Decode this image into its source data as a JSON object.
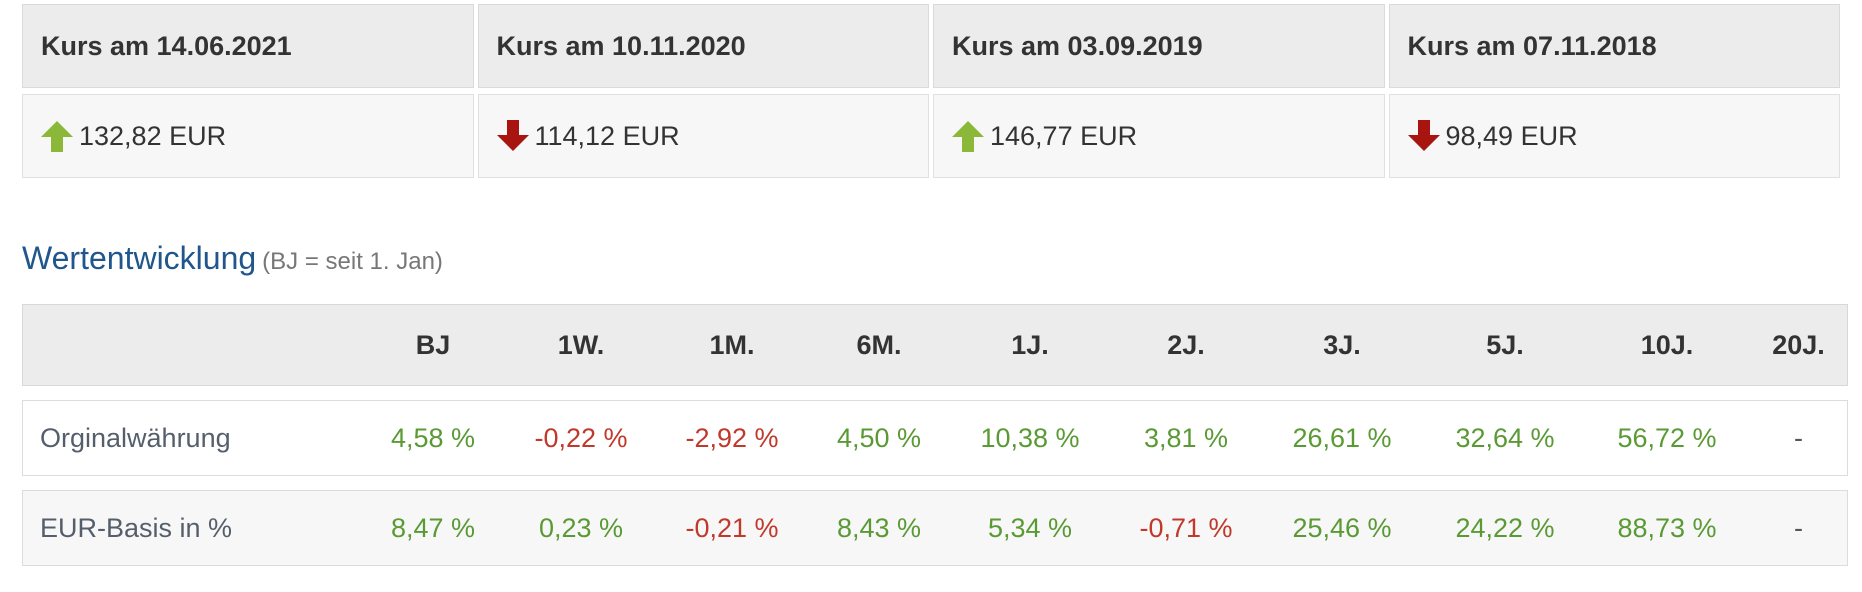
{
  "kurs": [
    {
      "label": "Kurs am 14.06.2021",
      "value": "132,82 EUR",
      "direction": "up"
    },
    {
      "label": "Kurs am 10.11.2020",
      "value": "114,12 EUR",
      "direction": "down"
    },
    {
      "label": "Kurs am 03.09.2019",
      "value": "146,77 EUR",
      "direction": "up"
    },
    {
      "label": "Kurs am 07.11.2018",
      "value": "98,49 EUR",
      "direction": "down"
    }
  ],
  "colors": {
    "up": "#8cb83a",
    "down": "#a8140f",
    "positive": "#5a9a34",
    "negative": "#c0392b",
    "title": "#20568c"
  },
  "performance": {
    "title": "Wertentwicklung",
    "subtitle": "(BJ = seit 1. Jan)",
    "columns": [
      "",
      "BJ",
      "1W.",
      "1M.",
      "6M.",
      "1J.",
      "2J.",
      "3J.",
      "5J.",
      "10J.",
      "20J."
    ],
    "rows": [
      {
        "label": "Orginalwährung",
        "values": [
          "4,58 %",
          "-0,22 %",
          "-2,92 %",
          "4,50 %",
          "10,38 %",
          "3,81 %",
          "26,61 %",
          "32,64 %",
          "56,72 %",
          "-"
        ]
      },
      {
        "label": "EUR-Basis in %",
        "values": [
          "8,47 %",
          "0,23 %",
          "-0,21 %",
          "8,43 %",
          "5,34 %",
          "-0,71 %",
          "25,46 %",
          "24,22 %",
          "88,73 %",
          "-"
        ]
      }
    ]
  }
}
